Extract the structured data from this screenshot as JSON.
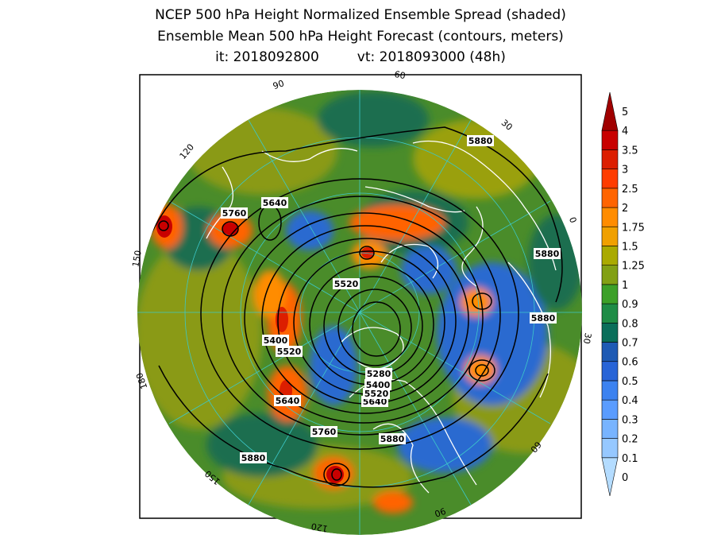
{
  "title": {
    "line1": "NCEP 500 hPa Height Normalized Ensemble Spread (shaded)",
    "line2": "Ensemble Mean 500 hPa Height Forecast (contours, meters)",
    "init_label": "it: 2018092800",
    "valid_label": "vt: 2018093000 (48h)"
  },
  "colorbar": {
    "levels": [
      "0",
      "0.1",
      "0.2",
      "0.3",
      "0.4",
      "0.5",
      "0.6",
      "0.7",
      "0.8",
      "0.9",
      "1",
      "1.25",
      "1.5",
      "1.75",
      "2",
      "2.5",
      "3",
      "3.5",
      "4",
      "5"
    ],
    "colors": [
      "#b4dcff",
      "#96c8ff",
      "#78b4ff",
      "#5a9cff",
      "#3c82f0",
      "#2864d7",
      "#1e5ab4",
      "#0a6e5a",
      "#1e8c46",
      "#3ca028",
      "#82a014",
      "#aaaa00",
      "#f0a000",
      "#ff8c00",
      "#ff6400",
      "#ff3c00",
      "#dc1e00",
      "#c80000",
      "#a00000"
    ]
  },
  "contour_labels": [
    {
      "text": "5880"
    },
    {
      "text": "5880"
    },
    {
      "text": "5880"
    },
    {
      "text": "5880"
    },
    {
      "text": "5880"
    },
    {
      "text": "5760"
    },
    {
      "text": "5760"
    },
    {
      "text": "5640"
    },
    {
      "text": "5640"
    },
    {
      "text": "5640"
    },
    {
      "text": "5520"
    },
    {
      "text": "5520"
    },
    {
      "text": "5520"
    },
    {
      "text": "5400"
    },
    {
      "text": "5400"
    },
    {
      "text": "5280"
    }
  ],
  "longitude_labels": [
    "60",
    "30",
    "0",
    "30",
    "60",
    "90",
    "120",
    "150",
    "180",
    "150",
    "120",
    "90"
  ],
  "map": {
    "projection": "north-polar-stereographic",
    "background_color": "#4a8c2a",
    "border_color": "#000000"
  }
}
